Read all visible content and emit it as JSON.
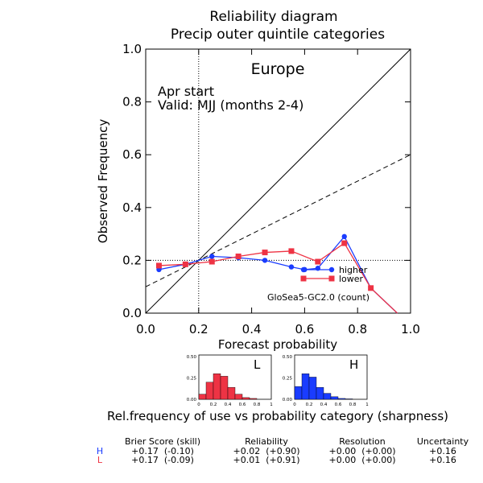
{
  "chart_data": {
    "type": "line",
    "title": "Reliability diagram",
    "subtitle": "Precip outer quintile categories",
    "region": "Europe",
    "annotations": [
      "Apr start",
      "Valid: MJJ (months 2-4)"
    ],
    "model_label": "GloSea5-GC2.0 (count)",
    "xlabel": "Forecast probability",
    "ylabel": "Observed Frequency",
    "xlim": [
      0.0,
      1.0
    ],
    "ylim": [
      0.0,
      1.0
    ],
    "x_ticks": [
      "0.0",
      "0.2",
      "0.4",
      "0.6",
      "0.8",
      "1.0"
    ],
    "y_ticks": [
      "0.0",
      "0.2",
      "0.4",
      "0.6",
      "0.8",
      "1.0"
    ],
    "climatology": 0.2,
    "series": [
      {
        "name": "higher",
        "color": "#1a3cff",
        "x": [
          0.05,
          0.15,
          0.25,
          0.35,
          0.45,
          0.55,
          0.6,
          0.65,
          0.75,
          0.85,
          0.95
        ],
        "y": [
          0.165,
          0.185,
          0.215,
          0.21,
          0.2,
          0.175,
          0.165,
          0.17,
          0.29,
          0.095,
          0.0
        ]
      },
      {
        "name": "lower",
        "color": "#ee3344",
        "x": [
          0.05,
          0.15,
          0.25,
          0.35,
          0.45,
          0.55,
          0.65,
          0.75,
          0.85,
          0.95
        ],
        "y": [
          0.18,
          0.185,
          0.195,
          0.215,
          0.23,
          0.235,
          0.195,
          0.265,
          0.095,
          0.0
        ]
      }
    ],
    "sharpness": {
      "caption": "Rel.frequency of use vs probability category (sharpness)",
      "y_ticks": [
        "0.50",
        "0.25",
        "0.00"
      ],
      "x_ticks": [
        "0",
        "0.2",
        "0.4",
        "0.6",
        "0.8",
        "1"
      ],
      "panels": [
        {
          "letter": "L",
          "color": "#ee3344",
          "values": [
            0.06,
            0.2,
            0.3,
            0.27,
            0.14,
            0.06,
            0.02,
            0.01,
            0.0,
            0.0
          ]
        },
        {
          "letter": "H",
          "color": "#1a3cff",
          "values": [
            0.15,
            0.3,
            0.26,
            0.14,
            0.07,
            0.03,
            0.01,
            0.005,
            0.0,
            0.0
          ]
        }
      ]
    },
    "scores": {
      "headers": [
        "Brier Score (skill)",
        "Reliability",
        "Resolution",
        "Uncertainty"
      ],
      "rows": [
        {
          "label": "H",
          "color": "#1a3cff",
          "cells": [
            "+0.17  (-0.10)",
            "+0.02  (+0.90)",
            "+0.00  (+0.00)",
            "+0.16"
          ]
        },
        {
          "label": "L",
          "color": "#ee3344",
          "cells": [
            "+0.17  (-0.09)",
            "+0.01  (+0.91)",
            "+0.00  (+0.00)",
            "+0.16"
          ]
        }
      ]
    }
  }
}
